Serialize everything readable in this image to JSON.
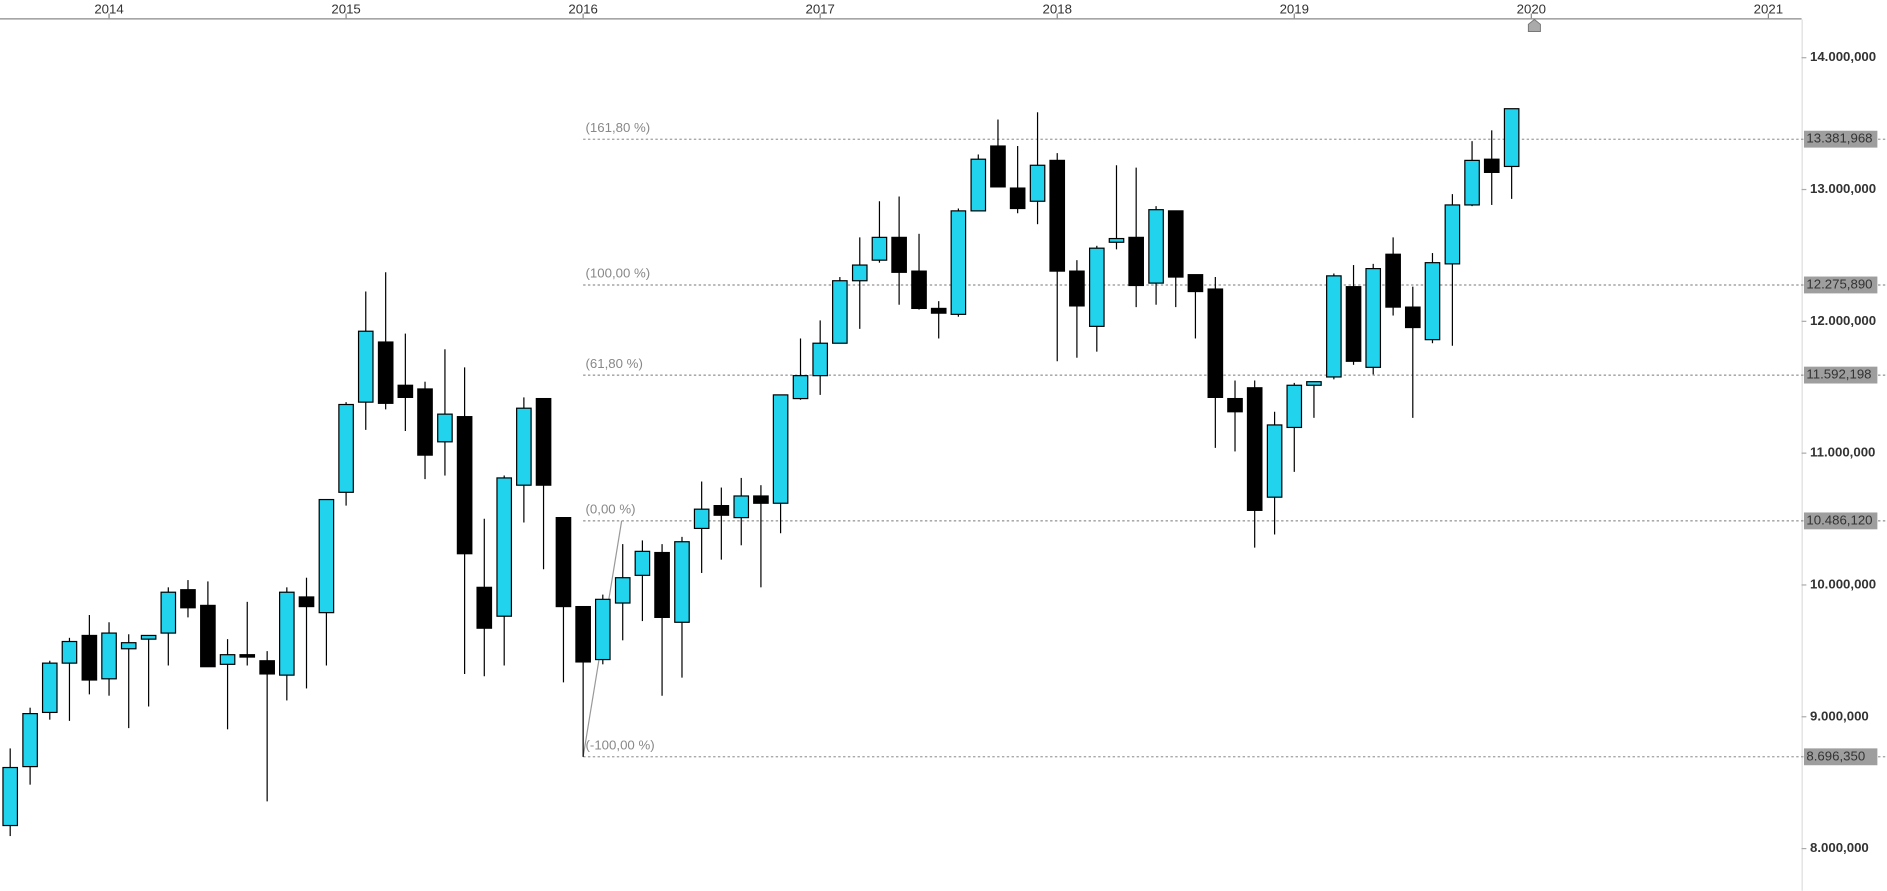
{
  "chart_data": {
    "type": "candlestick",
    "x": [
      2013.583,
      2013.667,
      2013.75,
      2013.833,
      2013.917,
      2014,
      2014.083,
      2014.167,
      2014.25,
      2014.333,
      2014.417,
      2014.5,
      2014.583,
      2014.667,
      2014.75,
      2014.833,
      2014.917,
      2015,
      2015.083,
      2015.167,
      2015.25,
      2015.333,
      2015.417,
      2015.5,
      2015.583,
      2015.667,
      2015.75,
      2015.833,
      2015.917,
      2016,
      2016.083,
      2016.167,
      2016.25,
      2016.333,
      2016.417,
      2016.5,
      2016.583,
      2016.667,
      2016.75,
      2016.833,
      2016.917,
      2017,
      2017.083,
      2017.167,
      2017.25,
      2017.333,
      2017.417,
      2017.5,
      2017.583,
      2017.667,
      2017.75,
      2017.833,
      2017.917,
      2018,
      2018.083,
      2018.167,
      2018.25,
      2018.333,
      2018.417,
      2018.5,
      2018.583,
      2018.667,
      2018.75,
      2018.833,
      2018.917,
      2019,
      2019.083,
      2019.167,
      2019.25,
      2019.333,
      2019.417,
      2019.5,
      2019.583,
      2019.667,
      2019.75,
      2019.833,
      2019.917
    ],
    "open": [
      8175000,
      8622000,
      9033000,
      9407000,
      9617000,
      9288000,
      9516000,
      9589000,
      9635000,
      9964000,
      9845000,
      9398000,
      9471000,
      9425000,
      9316000,
      9909000,
      9790000,
      10703000,
      11387000,
      11843000,
      11515000,
      11487000,
      11086000,
      11277000,
      9982000,
      9763000,
      10757000,
      11414000,
      10511000,
      9836000,
      9434000,
      9863000,
      10073000,
      10246000,
      9717000,
      10429000,
      10602000,
      10511000,
      10675000,
      10620000,
      11414000,
      11588000,
      11834000,
      12308000,
      12464000,
      12637000,
      12381000,
      12098000,
      12053000,
      12838000,
      13330000,
      13011000,
      12911000,
      13221000,
      12381000,
      11962000,
      12600000,
      12637000,
      12290000,
      12838000,
      12354000,
      12245000,
      11414000,
      11496000,
      10666000,
      11195000,
      11515000,
      11578000,
      12263000,
      11651000,
      12509000,
      12108000,
      11861000,
      12436000,
      12883000,
      13230000,
      13175000
    ],
    "high": [
      8760000,
      9069000,
      9425000,
      9599000,
      9772000,
      9717000,
      9626000,
      9617000,
      9982000,
      10037000,
      10027000,
      9589000,
      9872000,
      9498000,
      9982000,
      10055000,
      10648000,
      11387000,
      12226000,
      12372000,
      11907000,
      11542000,
      11788000,
      11651000,
      10502000,
      10830000,
      11423000,
      11414000,
      10511000,
      9836000,
      9927000,
      10310000,
      10338000,
      10310000,
      10365000,
      10785000,
      10739000,
      10812000,
      10757000,
      11442000,
      11870000,
      12007000,
      12336000,
      12637000,
      12911000,
      12947000,
      12664000,
      12153000,
      12856000,
      13266000,
      13531000,
      13330000,
      13586000,
      13276000,
      12464000,
      12573000,
      13184000,
      13166000,
      12874000,
      12838000,
      12354000,
      12336000,
      11551000,
      11551000,
      11314000,
      11533000,
      11542000,
      12363000,
      12427000,
      12436000,
      12637000,
      12263000,
      12518000,
      12965000,
      13367000,
      13449000,
      13613000
    ],
    "low": [
      8095000,
      8485000,
      8978000,
      8969000,
      9170000,
      9160000,
      8914000,
      9078000,
      9389000,
      9754000,
      9380000,
      8905000,
      9389000,
      8358000,
      9124000,
      9215000,
      9389000,
      10602000,
      11177000,
      11332000,
      11168000,
      10803000,
      10830000,
      9325000,
      9307000,
      9389000,
      10474000,
      10119000,
      9261000,
      8696000,
      9398000,
      9580000,
      9726000,
      9160000,
      9297000,
      10091000,
      10192000,
      10301000,
      9982000,
      10392000,
      11405000,
      11442000,
      11834000,
      11943000,
      12445000,
      12126000,
      12089000,
      11870000,
      12035000,
      12838000,
      13020000,
      12820000,
      12737000,
      11697000,
      11724000,
      11770000,
      12546000,
      12108000,
      12126000,
      12108000,
      11870000,
      11040000,
      11013000,
      10283000,
      10383000,
      10858000,
      11268000,
      11560000,
      11670000,
      11597000,
      12044000,
      11268000,
      11834000,
      11815000,
      12874000,
      12883000,
      12929000
    ],
    "close": [
      8615000,
      9024000,
      9407000,
      9571000,
      9279000,
      9635000,
      9562000,
      9617000,
      9945000,
      9827000,
      9380000,
      9471000,
      9453000,
      9325000,
      9945000,
      9836000,
      10648000,
      11369000,
      11925000,
      11378000,
      11423000,
      10985000,
      11296000,
      10237000,
      9672000,
      10812000,
      11341000,
      10757000,
      9836000,
      9416000,
      9891000,
      10055000,
      10255000,
      9754000,
      10328000,
      10575000,
      10529000,
      10675000,
      10620000,
      11442000,
      11588000,
      11834000,
      12308000,
      12427000,
      12637000,
      12372000,
      12098000,
      12062000,
      12838000,
      13230000,
      13020000,
      12856000,
      13184000,
      12381000,
      12117000,
      12555000,
      12628000,
      12272000,
      12847000,
      12336000,
      12226000,
      11423000,
      11314000,
      10566000,
      11214000,
      11515000,
      11542000,
      12345000,
      11697000,
      12400000,
      12108000,
      11953000,
      12445000,
      12883000,
      13221000,
      13130000,
      13613000
    ],
    "up_color": "#22d3ee",
    "down_color": "#000000",
    "xlim": [
      2013.54,
      2021.14
    ],
    "xticks": [
      2014,
      2015,
      2016,
      2017,
      2018,
      2019,
      2020,
      2021
    ],
    "ylim": [
      7680000,
      14290000
    ],
    "yticks": [
      {
        "value": 8000000,
        "label": "8.000,000"
      },
      {
        "value": 9000000,
        "label": "9.000,000"
      },
      {
        "value": 10000000,
        "label": "10.000,000"
      },
      {
        "value": 11000000,
        "label": "11.000,000"
      },
      {
        "value": 12000000,
        "label": "12.000,000"
      },
      {
        "value": 13000000,
        "label": "13.000,000"
      },
      {
        "value": 14000000,
        "label": "14.000,000"
      }
    ],
    "fib_levels": {
      "labels": [
        "(161,80 %)",
        "(100,00 %)",
        "(61,80 %)",
        "(0,00 %)",
        "(-100,00 %)"
      ],
      "values": [
        13381968,
        12275890,
        11592198,
        10486120,
        8696350
      ],
      "value_labels": [
        "13.381,968",
        "12.275,890",
        "11.592,198",
        "10.486,120",
        "8.696,350"
      ]
    }
  }
}
